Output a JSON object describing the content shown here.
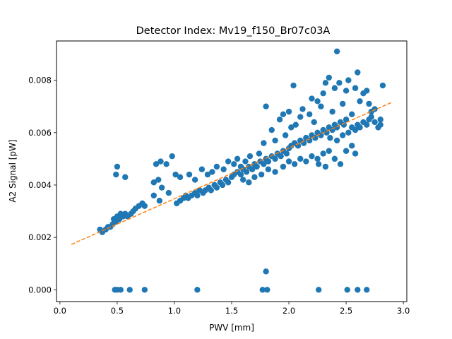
{
  "chart_data": {
    "type": "scatter",
    "title": "Detector Index: Mv19_f150_Br07c03A",
    "xlabel": "PWV [mm]",
    "ylabel": "A2 Signal [pW]",
    "xlim": [
      -0.03,
      3.03
    ],
    "ylim": [
      -0.00045,
      0.0095
    ],
    "xticks": [
      0.0,
      0.5,
      1.0,
      1.5,
      2.0,
      2.5,
      3.0
    ],
    "xtick_labels": [
      "0.0",
      "0.5",
      "1.0",
      "1.5",
      "2.0",
      "2.5",
      "3.0"
    ],
    "yticks": [
      0.0,
      0.002,
      0.004,
      0.006,
      0.008
    ],
    "ytick_labels": [
      "0.000",
      "0.002",
      "0.004",
      "0.006",
      "0.008"
    ],
    "grid": false,
    "legend": false,
    "series": [
      {
        "name": "measurements",
        "type": "scatter",
        "color": "#1f77b4",
        "points": [
          [
            0.35,
            0.0023
          ],
          [
            0.37,
            0.0022
          ],
          [
            0.4,
            0.0023
          ],
          [
            0.42,
            0.0024
          ],
          [
            0.44,
            0.0024
          ],
          [
            0.46,
            0.0025
          ],
          [
            0.47,
            0.0027
          ],
          [
            0.49,
            0.0026
          ],
          [
            0.5,
            0.0028
          ],
          [
            0.52,
            0.0027
          ],
          [
            0.53,
            0.0029
          ],
          [
            0.55,
            0.0028
          ],
          [
            0.57,
            0.0029
          ],
          [
            0.59,
            0.0028
          ],
          [
            0.62,
            0.0029
          ],
          [
            0.64,
            0.003
          ],
          [
            0.66,
            0.0031
          ],
          [
            0.69,
            0.0032
          ],
          [
            0.72,
            0.0033
          ],
          [
            0.74,
            0.0032
          ],
          [
            0.49,
            0.0044
          ],
          [
            0.5,
            0.0047
          ],
          [
            0.57,
            0.0043
          ],
          [
            0.84,
            0.0048
          ],
          [
            0.86,
            0.0042
          ],
          [
            0.88,
            0.0049
          ],
          [
            0.93,
            0.0048
          ],
          [
            0.98,
            0.0051
          ],
          [
            1.01,
            0.0044
          ],
          [
            1.05,
            0.0043
          ],
          [
            0.82,
            0.0041
          ],
          [
            0.89,
            0.0039
          ],
          [
            0.95,
            0.0037
          ],
          [
            0.82,
            0.0036
          ],
          [
            0.87,
            0.0034
          ],
          [
            1.02,
            0.0033
          ],
          [
            1.05,
            0.0034
          ],
          [
            1.08,
            0.0035
          ],
          [
            1.1,
            0.0036
          ],
          [
            1.12,
            0.0035
          ],
          [
            1.15,
            0.0036
          ],
          [
            1.18,
            0.0037
          ],
          [
            1.2,
            0.0036
          ],
          [
            1.22,
            0.0038
          ],
          [
            1.25,
            0.0037
          ],
          [
            1.27,
            0.0038
          ],
          [
            1.3,
            0.0039
          ],
          [
            1.32,
            0.0038
          ],
          [
            1.35,
            0.004
          ],
          [
            1.37,
            0.0039
          ],
          [
            1.4,
            0.0041
          ],
          [
            1.42,
            0.004
          ],
          [
            1.45,
            0.0042
          ],
          [
            1.47,
            0.0041
          ],
          [
            1.5,
            0.0043
          ],
          [
            1.13,
            0.0044
          ],
          [
            1.18,
            0.0042
          ],
          [
            1.24,
            0.0046
          ],
          [
            1.29,
            0.0044
          ],
          [
            1.33,
            0.0045
          ],
          [
            1.37,
            0.0047
          ],
          [
            1.43,
            0.0046
          ],
          [
            1.47,
            0.0049
          ],
          [
            1.52,
            0.0048
          ],
          [
            1.55,
            0.005
          ],
          [
            1.58,
            0.0047
          ],
          [
            1.62,
            0.0049
          ],
          [
            1.66,
            0.0051
          ],
          [
            1.7,
            0.0048
          ],
          [
            1.74,
            0.0052
          ],
          [
            1.52,
            0.0044
          ],
          [
            1.55,
            0.0045
          ],
          [
            1.58,
            0.0044
          ],
          [
            1.6,
            0.0046
          ],
          [
            1.63,
            0.0045
          ],
          [
            1.65,
            0.0047
          ],
          [
            1.68,
            0.0046
          ],
          [
            1.7,
            0.0048
          ],
          [
            1.72,
            0.0047
          ],
          [
            1.75,
            0.0049
          ],
          [
            1.78,
            0.0048
          ],
          [
            1.8,
            0.005
          ],
          [
            1.82,
            0.0049
          ],
          [
            1.85,
            0.0051
          ],
          [
            1.88,
            0.005
          ],
          [
            1.9,
            0.0052
          ],
          [
            1.93,
            0.0051
          ],
          [
            1.95,
            0.0053
          ],
          [
            1.98,
            0.0052
          ],
          [
            2.0,
            0.0054
          ],
          [
            1.6,
            0.0042
          ],
          [
            1.65,
            0.0041
          ],
          [
            1.7,
            0.0043
          ],
          [
            1.76,
            0.0044
          ],
          [
            1.82,
            0.0046
          ],
          [
            1.88,
            0.0045
          ],
          [
            1.95,
            0.0047
          ],
          [
            2.0,
            0.0049
          ],
          [
            2.05,
            0.0048
          ],
          [
            2.1,
            0.005
          ],
          [
            2.15,
            0.0049
          ],
          [
            2.2,
            0.0051
          ],
          [
            2.25,
            0.005
          ],
          [
            2.3,
            0.0052
          ],
          [
            2.35,
            0.0053
          ],
          [
            1.78,
            0.0056
          ],
          [
            1.8,
            0.007
          ],
          [
            1.85,
            0.0061
          ],
          [
            1.88,
            0.0057
          ],
          [
            1.92,
            0.0065
          ],
          [
            1.95,
            0.0067
          ],
          [
            1.97,
            0.0059
          ],
          [
            2.0,
            0.0068
          ],
          [
            2.02,
            0.0062
          ],
          [
            2.04,
            0.0078
          ],
          [
            2.06,
            0.0063
          ],
          [
            2.1,
            0.0066
          ],
          [
            2.12,
            0.0069
          ],
          [
            2.15,
            0.0058
          ],
          [
            2.18,
            0.0067
          ],
          [
            2.2,
            0.0073
          ],
          [
            2.22,
            0.0064
          ],
          [
            2.25,
            0.0072
          ],
          [
            2.28,
            0.007
          ],
          [
            2.3,
            0.0075
          ],
          [
            2.02,
            0.0055
          ],
          [
            2.05,
            0.0056
          ],
          [
            2.08,
            0.0055
          ],
          [
            2.1,
            0.0057
          ],
          [
            2.13,
            0.0056
          ],
          [
            2.15,
            0.0058
          ],
          [
            2.18,
            0.0057
          ],
          [
            2.2,
            0.0059
          ],
          [
            2.23,
            0.0058
          ],
          [
            2.25,
            0.006
          ],
          [
            2.28,
            0.0059
          ],
          [
            2.3,
            0.0061
          ],
          [
            2.33,
            0.006
          ],
          [
            2.35,
            0.0062
          ],
          [
            2.38,
            0.0061
          ],
          [
            2.4,
            0.0063
          ],
          [
            2.42,
            0.0062
          ],
          [
            2.45,
            0.0064
          ],
          [
            2.48,
            0.0063
          ],
          [
            2.5,
            0.0065
          ],
          [
            2.32,
            0.0079
          ],
          [
            2.35,
            0.0081
          ],
          [
            2.38,
            0.0068
          ],
          [
            2.4,
            0.0077
          ],
          [
            2.42,
            0.0091
          ],
          [
            2.44,
            0.0079
          ],
          [
            2.47,
            0.0071
          ],
          [
            2.5,
            0.0076
          ],
          [
            2.52,
            0.008
          ],
          [
            2.55,
            0.0067
          ],
          [
            2.58,
            0.0077
          ],
          [
            2.6,
            0.0083
          ],
          [
            2.62,
            0.0072
          ],
          [
            2.65,
            0.0075
          ],
          [
            2.68,
            0.0076
          ],
          [
            2.7,
            0.0071
          ],
          [
            2.72,
            0.0068
          ],
          [
            2.75,
            0.0069
          ],
          [
            2.8,
            0.0065
          ],
          [
            2.82,
            0.0078
          ],
          [
            2.52,
            0.006
          ],
          [
            2.55,
            0.0062
          ],
          [
            2.58,
            0.0061
          ],
          [
            2.6,
            0.0063
          ],
          [
            2.62,
            0.0062
          ],
          [
            2.65,
            0.0064
          ],
          [
            2.68,
            0.0063
          ],
          [
            2.7,
            0.0065
          ],
          [
            2.72,
            0.0066
          ],
          [
            2.75,
            0.0064
          ],
          [
            2.78,
            0.0062
          ],
          [
            2.8,
            0.0063
          ],
          [
            2.26,
            0.0048
          ],
          [
            2.32,
            0.0047
          ],
          [
            2.4,
            0.005
          ],
          [
            2.45,
            0.0048
          ],
          [
            2.5,
            0.0053
          ],
          [
            2.55,
            0.0055
          ],
          [
            2.58,
            0.0052
          ],
          [
            2.36,
            0.0058
          ],
          [
            2.42,
            0.0057
          ],
          [
            2.47,
            0.0059
          ],
          [
            0.48,
            0.0
          ],
          [
            0.5,
            0.0
          ],
          [
            0.53,
            0.0
          ],
          [
            0.61,
            0.0
          ],
          [
            0.74,
            0.0
          ],
          [
            1.2,
            0.0
          ],
          [
            1.77,
            0.0
          ],
          [
            1.81,
            0.0
          ],
          [
            1.8,
            0.0007
          ],
          [
            2.26,
            0.0
          ],
          [
            2.51,
            0.0
          ],
          [
            2.6,
            0.0
          ],
          [
            2.68,
            0.0
          ]
        ]
      },
      {
        "name": "linear fit",
        "type": "line",
        "style": "dashed",
        "color": "#ff7f0e",
        "x": [
          0.1,
          2.9
        ],
        "y": [
          0.00173,
          0.00716
        ]
      }
    ]
  }
}
